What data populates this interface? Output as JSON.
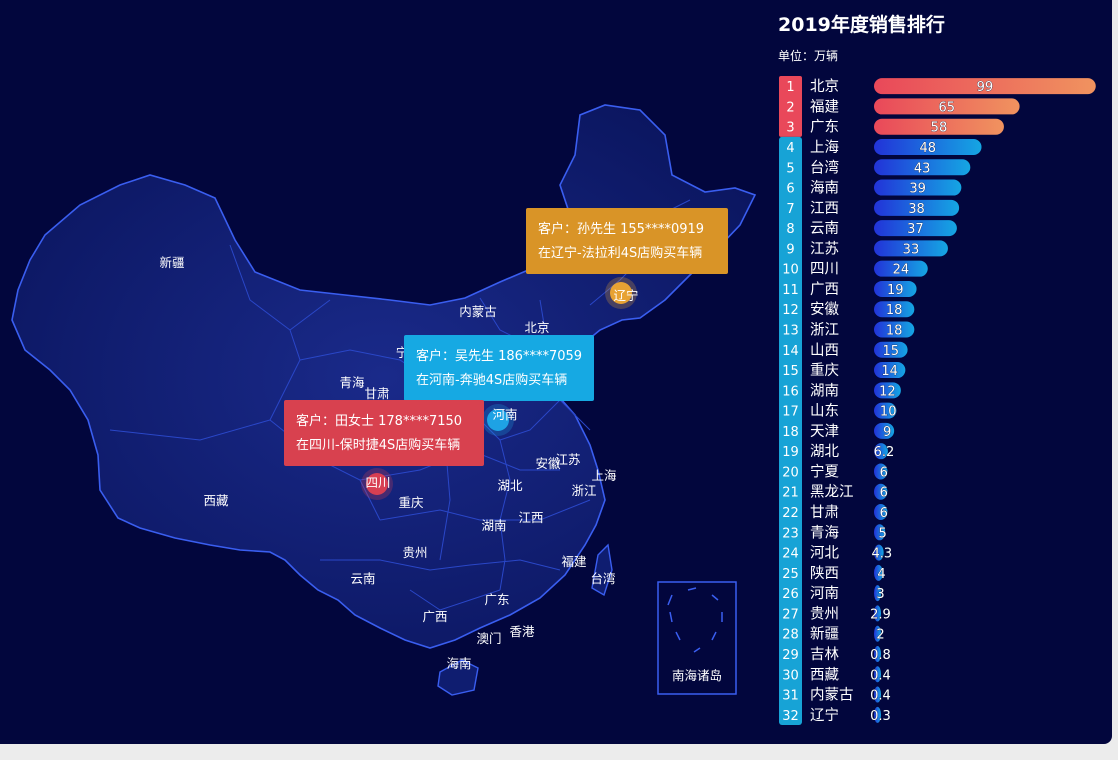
{
  "map": {
    "provinces": [
      "新疆",
      "西藏",
      "青海",
      "甘肃",
      "内蒙古",
      "北京",
      "天津",
      "宁",
      "河北",
      "山西",
      "河南",
      "山东",
      "陕西",
      "四川",
      "重庆",
      "湖北",
      "安徽",
      "江苏",
      "上海",
      "浙江",
      "湖南",
      "江西",
      "贵州",
      "云南",
      "广西",
      "广东",
      "福建",
      "台湾",
      "澳门",
      "香港",
      "海南",
      "吉林",
      "辽宁",
      "南海诸岛"
    ],
    "tooltips": [
      {
        "line1": "客户：孙先生  155****0919",
        "line2": "在辽宁-法拉利4S店购买车辆",
        "color": "#d99427"
      },
      {
        "line1": "客户：吴先生  186****7059",
        "line2": "在河南-奔驰4S店购买车辆",
        "color": "#16a9e3"
      },
      {
        "line1": "客户：田女士  178****7150",
        "line2": "在四川-保时捷4S店购买车辆",
        "color": "#d8414f"
      }
    ],
    "markers": [
      {
        "name": "辽宁",
        "color": "#f0a830"
      },
      {
        "name": "河南",
        "color": "#1fa8e8"
      },
      {
        "name": "四川",
        "color": "#e04050"
      }
    ]
  },
  "ranking": {
    "title": "2019年度销售排行",
    "unit": "单位：万辆"
  },
  "chart_data": {
    "type": "bar",
    "orientation": "horizontal",
    "title": "2019年度销售排行",
    "unit": "单位：万辆",
    "ranks": [
      "1",
      "2",
      "3",
      "4",
      "5",
      "6",
      "7",
      "8",
      "9",
      "10",
      "11",
      "12",
      "13",
      "14",
      "15",
      "16",
      "17",
      "18",
      "19",
      "20",
      "21",
      "22",
      "23",
      "24",
      "25",
      "26",
      "27",
      "28",
      "29",
      "30",
      "31",
      "32"
    ],
    "categories": [
      "北京",
      "福建",
      "广东",
      "上海",
      "台湾",
      "海南",
      "江西",
      "云南",
      "江苏",
      "四川",
      "广西",
      "安徽",
      "浙江",
      "山西",
      "重庆",
      "湖南",
      "山东",
      "天津",
      "湖北",
      "宁夏",
      "黑龙江",
      "甘肃",
      "青海",
      "河北",
      "陕西",
      "河南",
      "贵州",
      "新疆",
      "吉林",
      "西藏",
      "内蒙古",
      "辽宁"
    ],
    "values": [
      99,
      65,
      58,
      48,
      43,
      39,
      38,
      37,
      33,
      24,
      19,
      18,
      18,
      15,
      14,
      12,
      10,
      9,
      6.2,
      6,
      6,
      6,
      5,
      4.3,
      4,
      3,
      2.9,
      2,
      0.8,
      0.4,
      0.4,
      0.3
    ],
    "value_labels": [
      "99",
      "65",
      "58",
      "48",
      "43",
      "39",
      "38",
      "37",
      "33",
      "24",
      "19",
      "18",
      "18",
      "15",
      "14",
      "12",
      "10",
      "9",
      "6.2",
      "6",
      "6",
      "6",
      "5",
      "4.3",
      "4",
      "3",
      "2.9",
      "2",
      "0.8",
      "0.4",
      "0.4",
      "0.3"
    ],
    "top_colors": [
      "#e9485a",
      "#f0935f"
    ],
    "other_colors": [
      "#2233d8",
      "#15a6e3"
    ],
    "rank_top_color": "#e9485a",
    "rank_other_color": "#17a3d6"
  }
}
